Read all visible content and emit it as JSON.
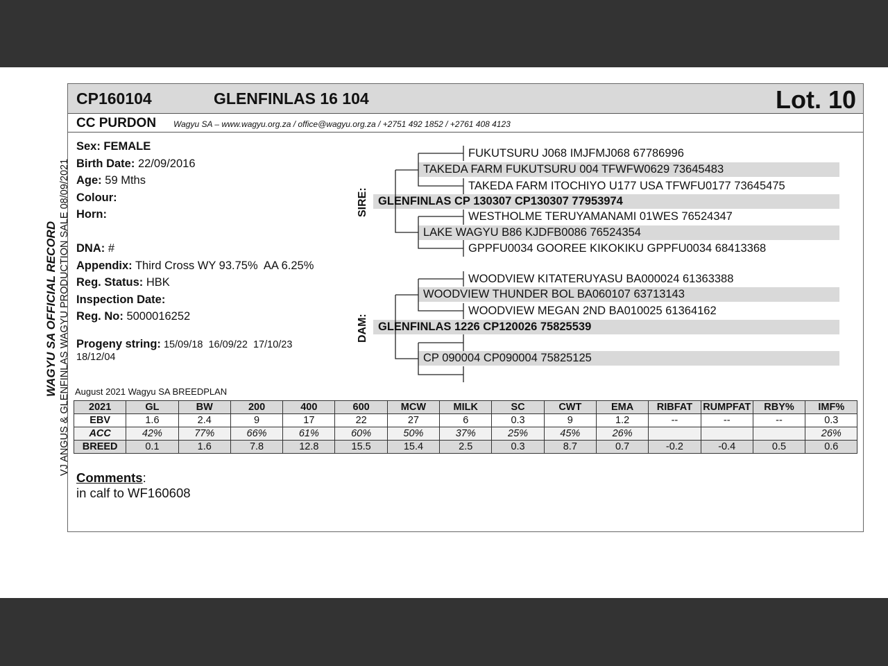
{
  "header": {
    "code": "CP160104",
    "name": "GLENFINLAS 16 104",
    "lot": "Lot. 10",
    "breeder": "CC PURDON",
    "contact": "Wagyu SA – www.wagyu.org.za / office@wagyu.org.za / +2751 492 1852 / +2761 408 4123"
  },
  "side": {
    "official": "WAGYU SA OFFICIAL RECORD",
    "sale": "VJ ANGUS & GLENFINLAS WAGYU PRODUCTION SALE 08/09/2021"
  },
  "info": [
    {
      "label": "Sex: FEMALE",
      "value": ""
    },
    {
      "label": "Birth Date:",
      "value": "22/09/2016"
    },
    {
      "label": "Age:",
      "value": "59 Mths"
    },
    {
      "label": "Colour:",
      "value": ""
    },
    {
      "label": "Horn:",
      "value": ""
    },
    {
      "label": "DNA:",
      "value": "#"
    },
    {
      "label": "Appendix:",
      "value": "Third Cross WY 93.75%  AA 6.25%"
    },
    {
      "label": "Reg. Status:",
      "value": "HBK"
    },
    {
      "label": "Inspection Date:",
      "value": ""
    },
    {
      "label": "Reg. No:",
      "value": "5000016252"
    }
  ],
  "progeny": {
    "label": "Progeny string:",
    "line1": "15/09/18  16/09/22  17/10/23",
    "line2": "18/12/04"
  },
  "pedigree": {
    "sire_label": "SIRE:",
    "dam_label": "DAM:",
    "sire": "GLENFINLAS CP 130307 CP130307 77953974",
    "sire_sire": "TAKEDA FARM FUKUTSURU 004 TFWFW0629 73645483",
    "sire_sire_sire": "FUKUTSURU J068 IMJFMJ068 67786996",
    "sire_sire_dam": "TAKEDA FARM ITOCHIYO U177 USA TFWFU0177 73645475",
    "sire_dam": "LAKE WAGYU B86 KJDFB0086 76524354",
    "sire_dam_sire": "WESTHOLME TERUYAMANAMI 01WES 76524347",
    "sire_dam_dam": "GPPFU0034 GOOREE KIKOKIKU GPPFU0034 68413368",
    "dam": "GLENFINLAS 1226 CP120026 75825539",
    "dam_sire": "WOODVIEW THUNDER BOL BA060107 63713143",
    "dam_sire_sire": "WOODVIEW KITATERUYASU BA000024 61363388",
    "dam_sire_dam": "WOODVIEW MEGAN 2ND BA010025 61364162",
    "dam_dam": "CP 090004 CP090004 75825125"
  },
  "breedplan": {
    "title": "August 2021 Wagyu SA BREEDPLAN",
    "header": [
      "2021",
      "GL",
      "BW",
      "200",
      "400",
      "600",
      "MCW",
      "MILK",
      "SC",
      "CWT",
      "EMA",
      "RIBFAT",
      "RUMPFAT",
      "RBY%",
      "IMF%"
    ],
    "ebv": [
      "EBV",
      "1.6",
      "2.4",
      "9",
      "17",
      "22",
      "27",
      "6",
      "0.3",
      "9",
      "1.2",
      "--",
      "--",
      "--",
      "0.3"
    ],
    "acc": [
      "ACC",
      "42%",
      "77%",
      "66%",
      "61%",
      "60%",
      "50%",
      "37%",
      "25%",
      "45%",
      "26%",
      "",
      "",
      "",
      "26%"
    ],
    "breed": [
      "BREED",
      "0.1",
      "1.6",
      "7.8",
      "12.8",
      "15.5",
      "15.4",
      "2.5",
      "0.3",
      "8.7",
      "0.7",
      "-0.2",
      "-0.4",
      "0.5",
      "0.6"
    ]
  },
  "comments": {
    "label": "Comments",
    "text": "in calf to WF160608"
  }
}
